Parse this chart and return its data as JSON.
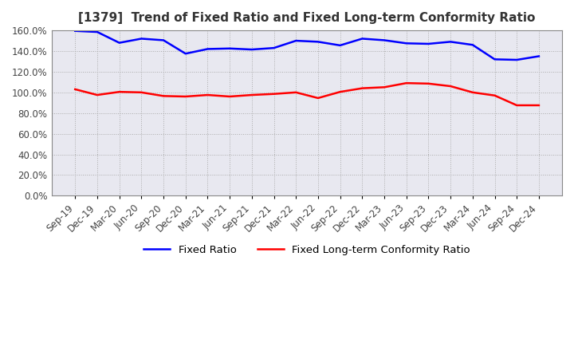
{
  "title": "[1379]  Trend of Fixed Ratio and Fixed Long-term Conformity Ratio",
  "x_labels": [
    "Sep-19",
    "Dec-19",
    "Mar-20",
    "Jun-20",
    "Sep-20",
    "Dec-20",
    "Mar-21",
    "Jun-21",
    "Sep-21",
    "Dec-21",
    "Mar-22",
    "Jun-22",
    "Sep-22",
    "Dec-22",
    "Mar-23",
    "Jun-23",
    "Sep-23",
    "Dec-23",
    "Mar-24",
    "Jun-24",
    "Sep-24",
    "Dec-24"
  ],
  "fixed_ratio": [
    1.595,
    1.585,
    1.48,
    1.52,
    1.505,
    1.375,
    1.42,
    1.425,
    1.415,
    1.43,
    1.5,
    1.49,
    1.455,
    1.52,
    1.505,
    1.475,
    1.47,
    1.49,
    1.46,
    1.32,
    1.315,
    1.35
  ],
  "fixed_lt_ratio": [
    1.03,
    0.975,
    1.005,
    1.0,
    0.965,
    0.96,
    0.975,
    0.96,
    0.975,
    0.985,
    1.0,
    0.945,
    1.005,
    1.04,
    1.05,
    1.09,
    1.085,
    1.06,
    1.0,
    0.97,
    0.875,
    0.875
  ],
  "line_color_fixed": "#0000ff",
  "line_color_lt": "#ff0000",
  "ylim_min": 0.0,
  "ylim_max": 1.6,
  "ytick_vals": [
    0.0,
    0.2,
    0.4,
    0.6,
    0.8,
    1.0,
    1.2,
    1.4,
    1.6
  ],
  "ytick_labels": [
    "0.0%",
    "20.0%",
    "40.0%",
    "60.0%",
    "80.0%",
    "100.0%",
    "120.0%",
    "140.0%",
    "160.0%"
  ],
  "background_color": "#ffffff",
  "plot_bg_color": "#e8e8f0",
  "grid_color": "#aaaaaa",
  "border_color": "#888888",
  "legend_fixed": "Fixed Ratio",
  "legend_lt": "Fixed Long-term Conformity Ratio",
  "title_fontsize": 11,
  "tick_fontsize": 8.5
}
